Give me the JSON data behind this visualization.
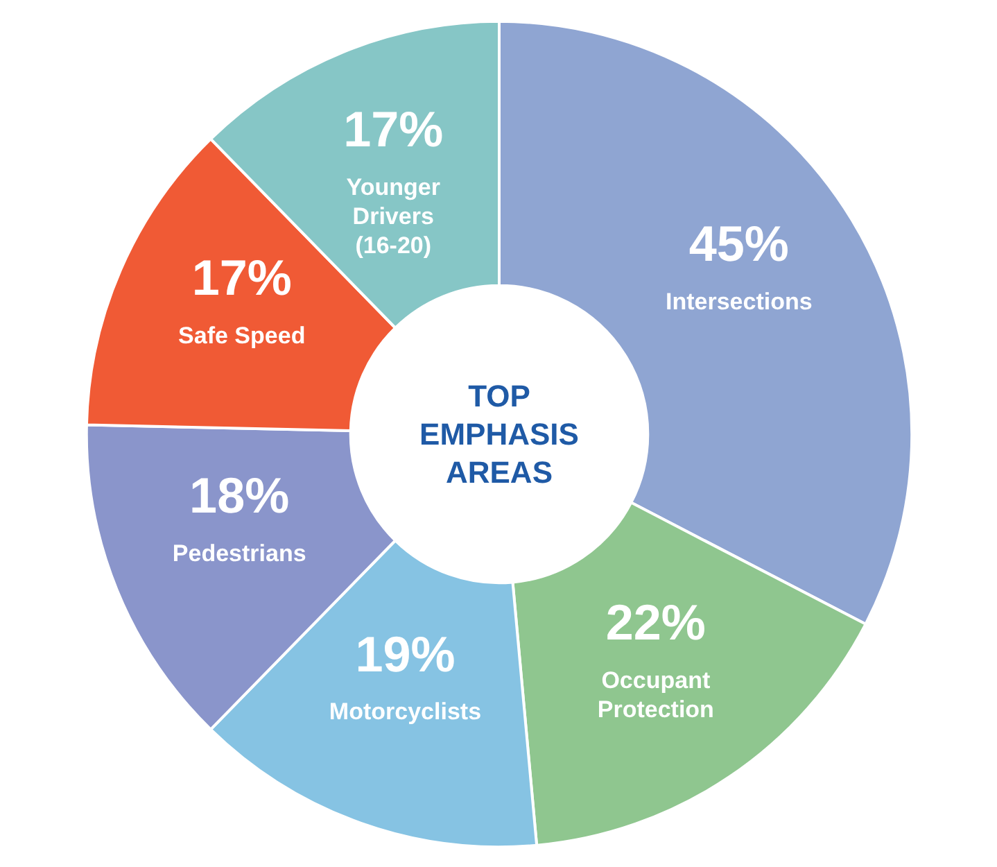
{
  "chart_data": {
    "type": "donut",
    "title": "TOP EMPHASIS AREAS",
    "categories": [
      "Intersections",
      "Occupant\nProtection",
      "Motorcyclists",
      "Pedestrians",
      "Safe Speed",
      "Younger\nDrivers\n(16-20)"
    ],
    "values": [
      45,
      22,
      19,
      18,
      17,
      17
    ],
    "value_labels": [
      "45%",
      "22%",
      "19%",
      "18%",
      "17%",
      "17%"
    ],
    "colors": [
      "#8fa5d2",
      "#8fc68f",
      "#86c3e3",
      "#8a95cb",
      "#f05a35",
      "#86c6c6"
    ]
  }
}
